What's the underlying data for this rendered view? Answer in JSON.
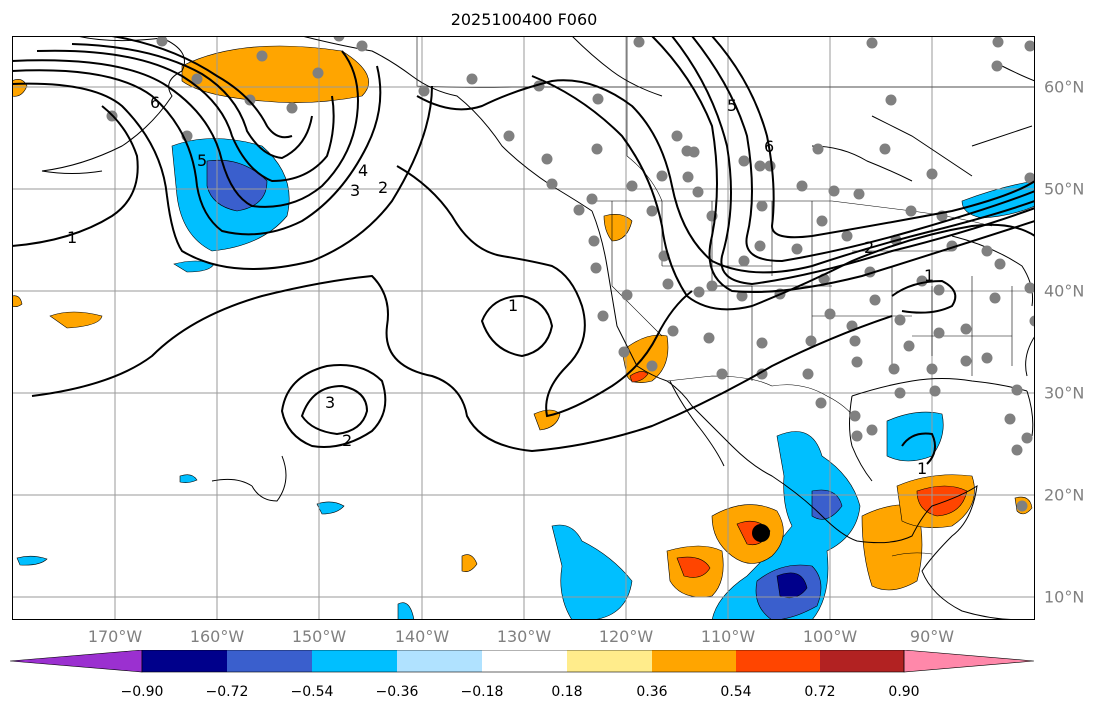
{
  "title": "2025100400 F060",
  "map": {
    "lon_labels": [
      "170°W",
      "160°W",
      "150°W",
      "140°W",
      "130°W",
      "120°W",
      "110°W",
      "100°W",
      "90°W"
    ],
    "lat_labels": [
      "60°N",
      "50°N",
      "40°N",
      "30°N",
      "20°N",
      "10°N"
    ],
    "contour_labels": [
      "1",
      "1",
      "1",
      "1",
      "2",
      "2",
      "2",
      "3",
      "3",
      "4",
      "5",
      "6",
      "6",
      "5"
    ]
  },
  "colorbar": {
    "tick_labels": [
      "−0.90",
      "−0.72",
      "−0.54",
      "−0.36",
      "−0.18",
      "0.18",
      "0.36",
      "0.54",
      "0.72",
      "0.90"
    ],
    "colors": [
      "#9b30d0",
      "#00008b",
      "#3a5fcd",
      "#00bfff",
      "#b0e2ff",
      "#ffffff",
      "#ffec8b",
      "#ffa500",
      "#ff4500",
      "#b22222",
      "#ff88aa"
    ]
  }
}
